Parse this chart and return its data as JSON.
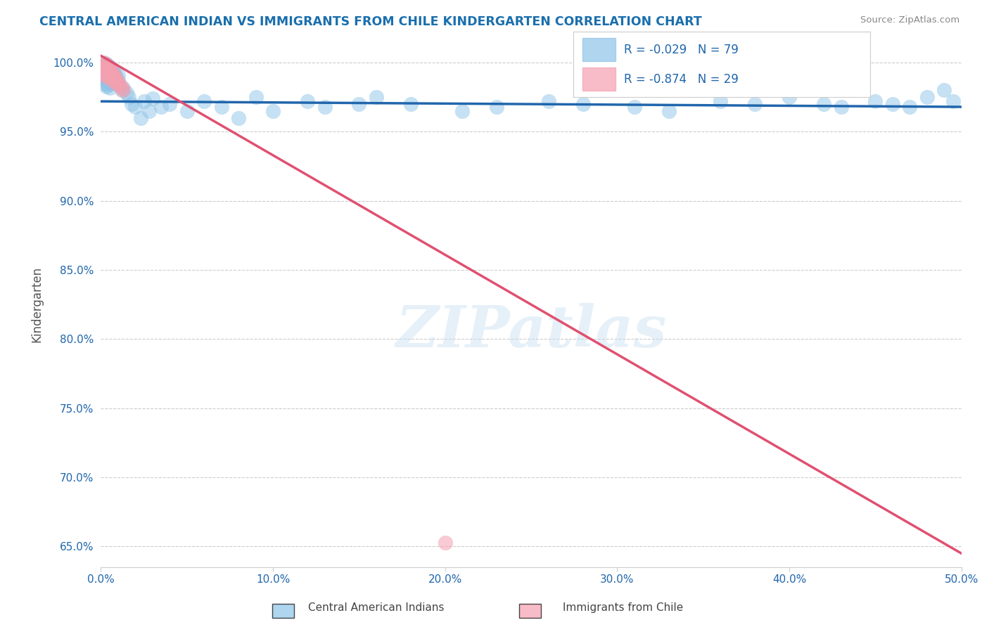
{
  "title": "CENTRAL AMERICAN INDIAN VS IMMIGRANTS FROM CHILE KINDERGARTEN CORRELATION CHART",
  "source": "Source: ZipAtlas.com",
  "ylabel_label": "Kindergarten",
  "xlim": [
    0.0,
    0.5
  ],
  "ylim": [
    0.635,
    1.015
  ],
  "xticks": [
    0.0,
    0.1,
    0.2,
    0.3,
    0.4,
    0.5
  ],
  "xticklabels": [
    "0.0%",
    "10.0%",
    "20.0%",
    "30.0%",
    "40.0%",
    "50.0%"
  ],
  "yticks": [
    0.65,
    0.7,
    0.75,
    0.8,
    0.85,
    0.9,
    0.95,
    1.0
  ],
  "yticklabels": [
    "65.0%",
    "70.0%",
    "75.0%",
    "80.0%",
    "85.0%",
    "90.0%",
    "95.0%",
    "100.0%"
  ],
  "grid_color": "#cccccc",
  "background_color": "#ffffff",
  "blue_color": "#8fc4e8",
  "pink_color": "#f4a0b0",
  "blue_line_color": "#2166ac",
  "pink_line_color": "#e05070",
  "R_blue": -0.029,
  "N_blue": 79,
  "R_pink": -0.874,
  "N_pink": 29,
  "legend_label_blue": "Central American Indians",
  "legend_label_pink": "Immigrants from Chile",
  "title_color": "#1a6fad",
  "axis_color": "#2166ac",
  "watermark": "ZIPatlas",
  "blue_line_x": [
    0.0,
    0.5
  ],
  "blue_line_y": [
    0.972,
    0.968
  ],
  "pink_line_x": [
    0.0,
    0.5
  ],
  "pink_line_y": [
    1.005,
    0.645
  ],
  "blue_scatter_x": [
    0.001,
    0.001,
    0.001,
    0.002,
    0.002,
    0.002,
    0.002,
    0.002,
    0.002,
    0.003,
    0.003,
    0.003,
    0.003,
    0.003,
    0.003,
    0.004,
    0.004,
    0.004,
    0.004,
    0.004,
    0.005,
    0.005,
    0.005,
    0.005,
    0.005,
    0.006,
    0.006,
    0.006,
    0.006,
    0.007,
    0.007,
    0.007,
    0.008,
    0.008,
    0.009,
    0.009,
    0.01,
    0.01,
    0.011,
    0.012,
    0.013,
    0.015,
    0.016,
    0.018,
    0.02,
    0.023,
    0.025,
    0.028,
    0.03,
    0.035,
    0.04,
    0.05,
    0.06,
    0.07,
    0.08,
    0.09,
    0.1,
    0.12,
    0.13,
    0.15,
    0.16,
    0.18,
    0.21,
    0.23,
    0.26,
    0.28,
    0.31,
    0.33,
    0.36,
    0.38,
    0.4,
    0.42,
    0.43,
    0.45,
    0.46,
    0.47,
    0.48,
    0.49,
    0.495
  ],
  "blue_scatter_y": [
    0.998,
    0.995,
    0.993,
    1.0,
    0.997,
    0.994,
    0.991,
    0.988,
    0.985,
    0.999,
    0.996,
    0.993,
    0.99,
    0.987,
    0.983,
    0.998,
    0.995,
    0.992,
    0.988,
    0.984,
    0.997,
    0.994,
    0.99,
    0.986,
    0.982,
    0.996,
    0.993,
    0.989,
    0.985,
    0.994,
    0.99,
    0.986,
    0.992,
    0.988,
    0.99,
    0.986,
    0.991,
    0.987,
    0.984,
    0.98,
    0.982,
    0.978,
    0.975,
    0.97,
    0.968,
    0.96,
    0.972,
    0.965,
    0.974,
    0.968,
    0.97,
    0.965,
    0.972,
    0.968,
    0.96,
    0.975,
    0.965,
    0.972,
    0.968,
    0.97,
    0.975,
    0.97,
    0.965,
    0.968,
    0.972,
    0.97,
    0.968,
    0.965,
    0.972,
    0.97,
    0.975,
    0.97,
    0.968,
    0.972,
    0.97,
    0.968,
    0.975,
    0.98,
    0.972
  ],
  "pink_scatter_x": [
    0.001,
    0.001,
    0.002,
    0.002,
    0.002,
    0.003,
    0.003,
    0.003,
    0.003,
    0.004,
    0.004,
    0.004,
    0.005,
    0.005,
    0.005,
    0.006,
    0.006,
    0.006,
    0.007,
    0.007,
    0.008,
    0.008,
    0.009,
    0.009,
    0.01,
    0.011,
    0.012,
    0.013,
    0.2
  ],
  "pink_scatter_y": [
    1.0,
    0.997,
    0.998,
    0.995,
    0.992,
    0.999,
    0.996,
    0.993,
    0.99,
    0.997,
    0.994,
    0.991,
    0.996,
    0.993,
    0.99,
    0.994,
    0.991,
    0.988,
    0.992,
    0.989,
    0.99,
    0.987,
    0.988,
    0.985,
    0.986,
    0.984,
    0.982,
    0.98,
    0.653
  ]
}
